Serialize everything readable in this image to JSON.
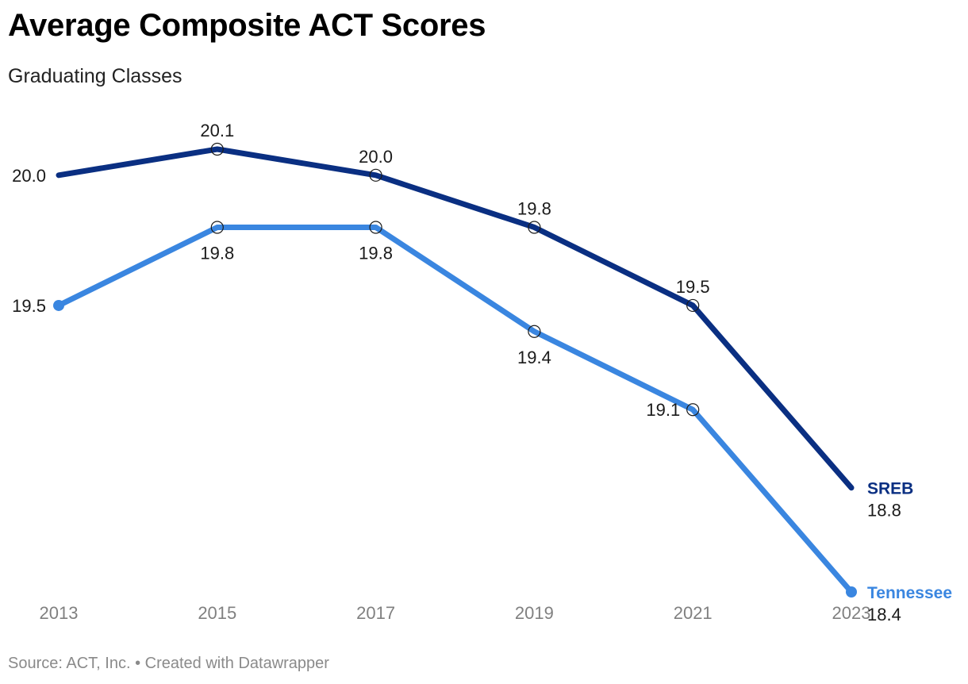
{
  "header": {
    "title": "Average Composite ACT Scores",
    "subtitle": "Graduating Classes"
  },
  "footer": {
    "source": "Source: ACT, Inc. • Created with Datawrapper"
  },
  "chart_data": {
    "type": "line",
    "x": [
      "2013",
      "2015",
      "2017",
      "2019",
      "2021",
      "2023"
    ],
    "series": [
      {
        "name": "SREB",
        "color": "#0a2f82",
        "values": [
          20.0,
          20.1,
          20.0,
          19.8,
          19.5,
          18.8
        ]
      },
      {
        "name": "Tennessee",
        "color": "#3a86e0",
        "values": [
          19.5,
          19.8,
          19.8,
          19.4,
          19.1,
          18.4
        ]
      }
    ],
    "ylim": [
      18.4,
      20.1
    ],
    "grid": false,
    "legend": "direct labels at line ends"
  }
}
